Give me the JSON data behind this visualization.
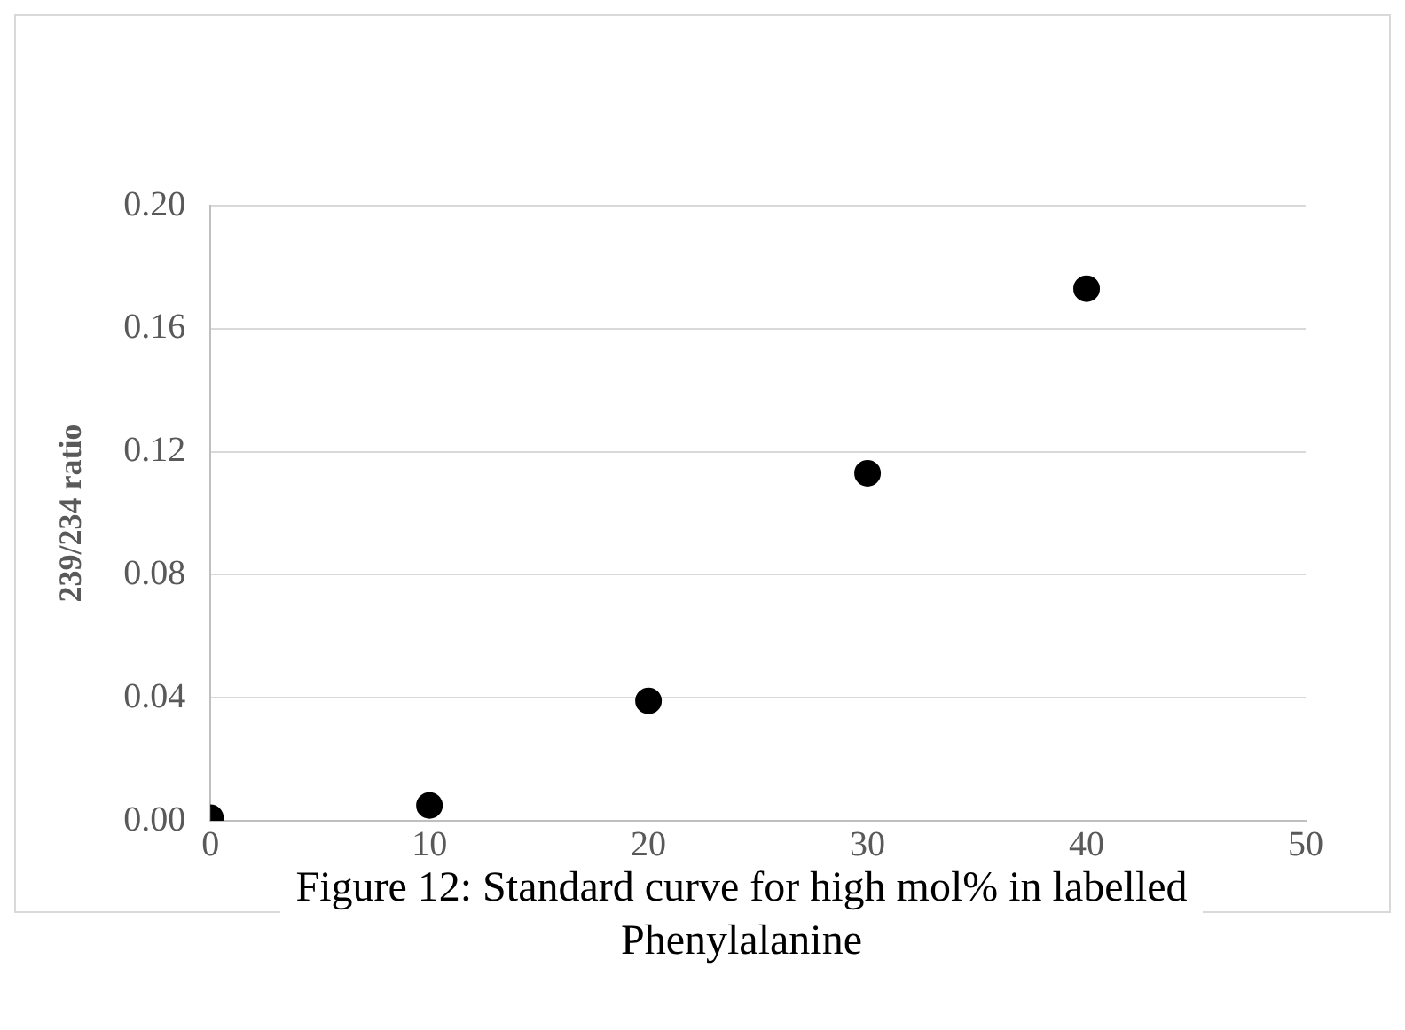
{
  "chart_data": {
    "type": "scatter",
    "ylabel": "239/234 ratio",
    "x": [
      0,
      10,
      20,
      30,
      40
    ],
    "series": [
      {
        "color": "#000000",
        "values": [
          0.001,
          0.005,
          0.039,
          0.113,
          0.173
        ]
      }
    ],
    "xlim": [
      0,
      50
    ],
    "xticks": [
      0,
      10,
      20,
      30,
      40,
      50
    ],
    "ylim": [
      0,
      0.2
    ],
    "yticks": [
      {
        "value": 0,
        "label": "0.00"
      },
      {
        "value": 0.04,
        "label": "0.04"
      },
      {
        "value": 0.08,
        "label": "0.08"
      },
      {
        "value": 0.12,
        "label": "0.12"
      },
      {
        "value": 0.16,
        "label": "0.16"
      },
      {
        "value": 0.2,
        "label": "0.20"
      }
    ],
    "grid": "y",
    "marker": "circle",
    "legend": false,
    "annotations": [
      "Figure 12: Standard curve for high mol% in labelled Phenylalanine"
    ]
  }
}
